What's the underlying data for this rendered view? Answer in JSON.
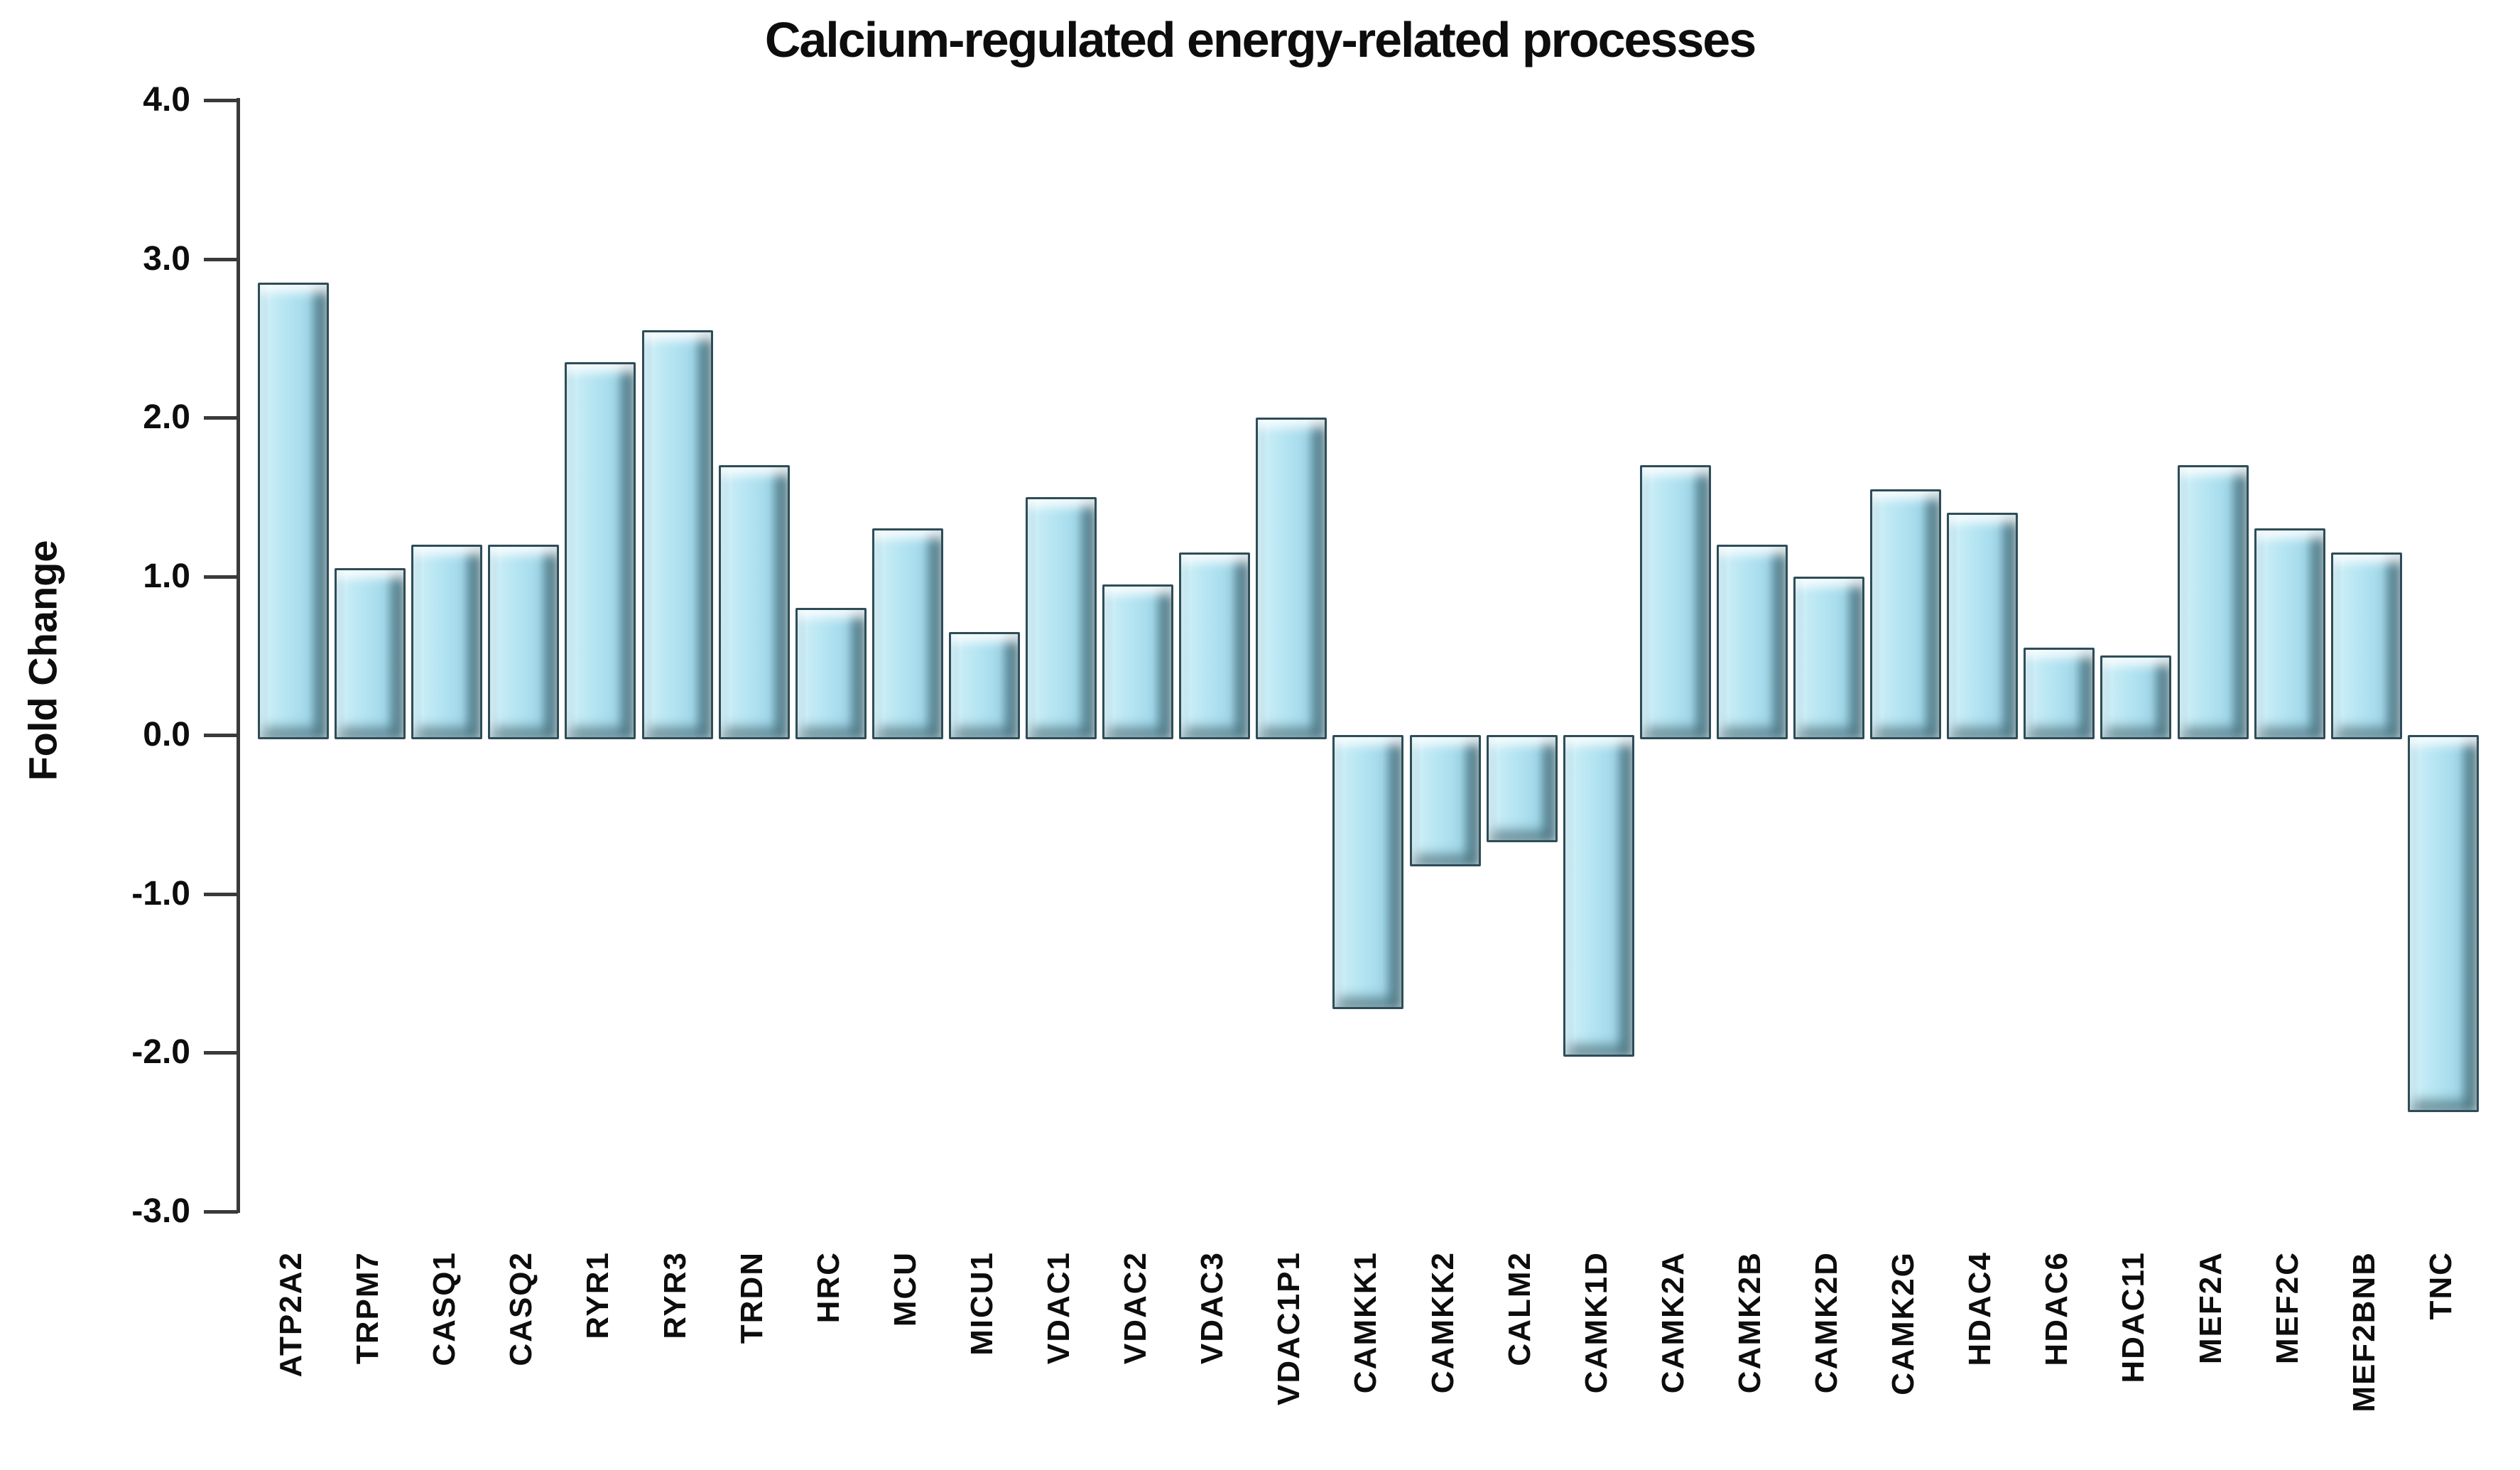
{
  "title": "Calcium-regulated energy-related processes",
  "y_axis": {
    "label": "Fold Change",
    "tick_labels": [
      "4.0",
      "3.0",
      "2.0",
      "1.0",
      "0.0",
      "-1.0",
      "-2.0",
      "-3.0"
    ],
    "tick_values": [
      4,
      3,
      2,
      1,
      0,
      -1,
      -2,
      -3
    ]
  },
  "colors": {
    "bar_fill": "#aadeee",
    "bar_highlight": "#c6ecf6",
    "bar_edge": "#2e4d58",
    "axis": "#3a3a3a",
    "text": "#0d0d0d",
    "background": "#ffffff"
  },
  "chart_data": {
    "type": "bar",
    "title": "Calcium-regulated energy-related processes",
    "xlabel": "",
    "ylabel": "Fold Change",
    "ylim": [
      -3.0,
      4.0
    ],
    "grid": false,
    "legend": null,
    "categories": [
      "ATP2A2",
      "TRPM7",
      "CASQ1",
      "CASQ2",
      "RYR1",
      "RYR3",
      "TRDN",
      "HRC",
      "MCU",
      "MICU1",
      "VDAC1",
      "VDAC2",
      "VDAC3",
      "VDAC1P1",
      "CAMKK1",
      "CAMKK2",
      "CALM2",
      "CAMK1D",
      "CAMK2A",
      "CAMK2B",
      "CAMK2D",
      "CAMK2G",
      "HDAC4",
      "HDAC6",
      "HDAC11",
      "MEF2A",
      "MEF2C",
      "MEF2BNB",
      "TNC"
    ],
    "values": [
      2.85,
      1.05,
      1.2,
      1.2,
      2.35,
      2.55,
      1.7,
      0.8,
      1.3,
      0.65,
      1.5,
      0.95,
      1.15,
      2.0,
      -1.7,
      -0.8,
      -0.65,
      -2.0,
      1.7,
      1.2,
      1.0,
      1.55,
      1.4,
      0.55,
      0.5,
      1.7,
      1.3,
      1.15,
      -2.35
    ]
  }
}
